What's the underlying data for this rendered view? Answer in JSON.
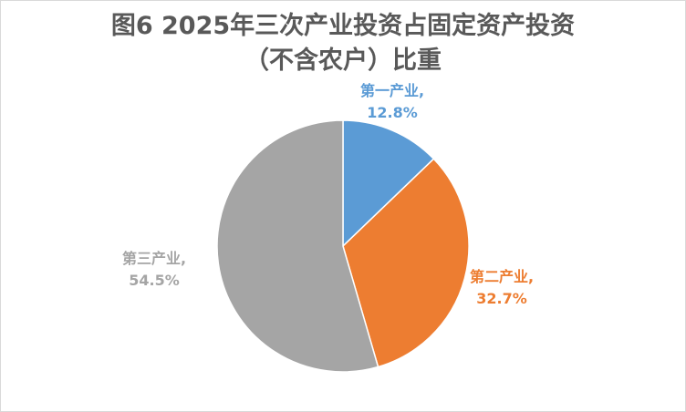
{
  "chart_data": {
    "type": "pie",
    "title": "图6  2025年三次产业投资占固定资产投资",
    "subtitle": "（不含农户）比重",
    "unit": "%",
    "slices": [
      {
        "name": "第一产业,",
        "value": 12.8,
        "value_label": "12.8%",
        "color": "#5b9bd5"
      },
      {
        "name": "第二产业,",
        "value": 32.7,
        "value_label": "32.7%",
        "color": "#ed7d31"
      },
      {
        "name": "第三产业,",
        "value": 54.5,
        "value_label": "54.5%",
        "color": "#a5a5a5"
      }
    ]
  }
}
